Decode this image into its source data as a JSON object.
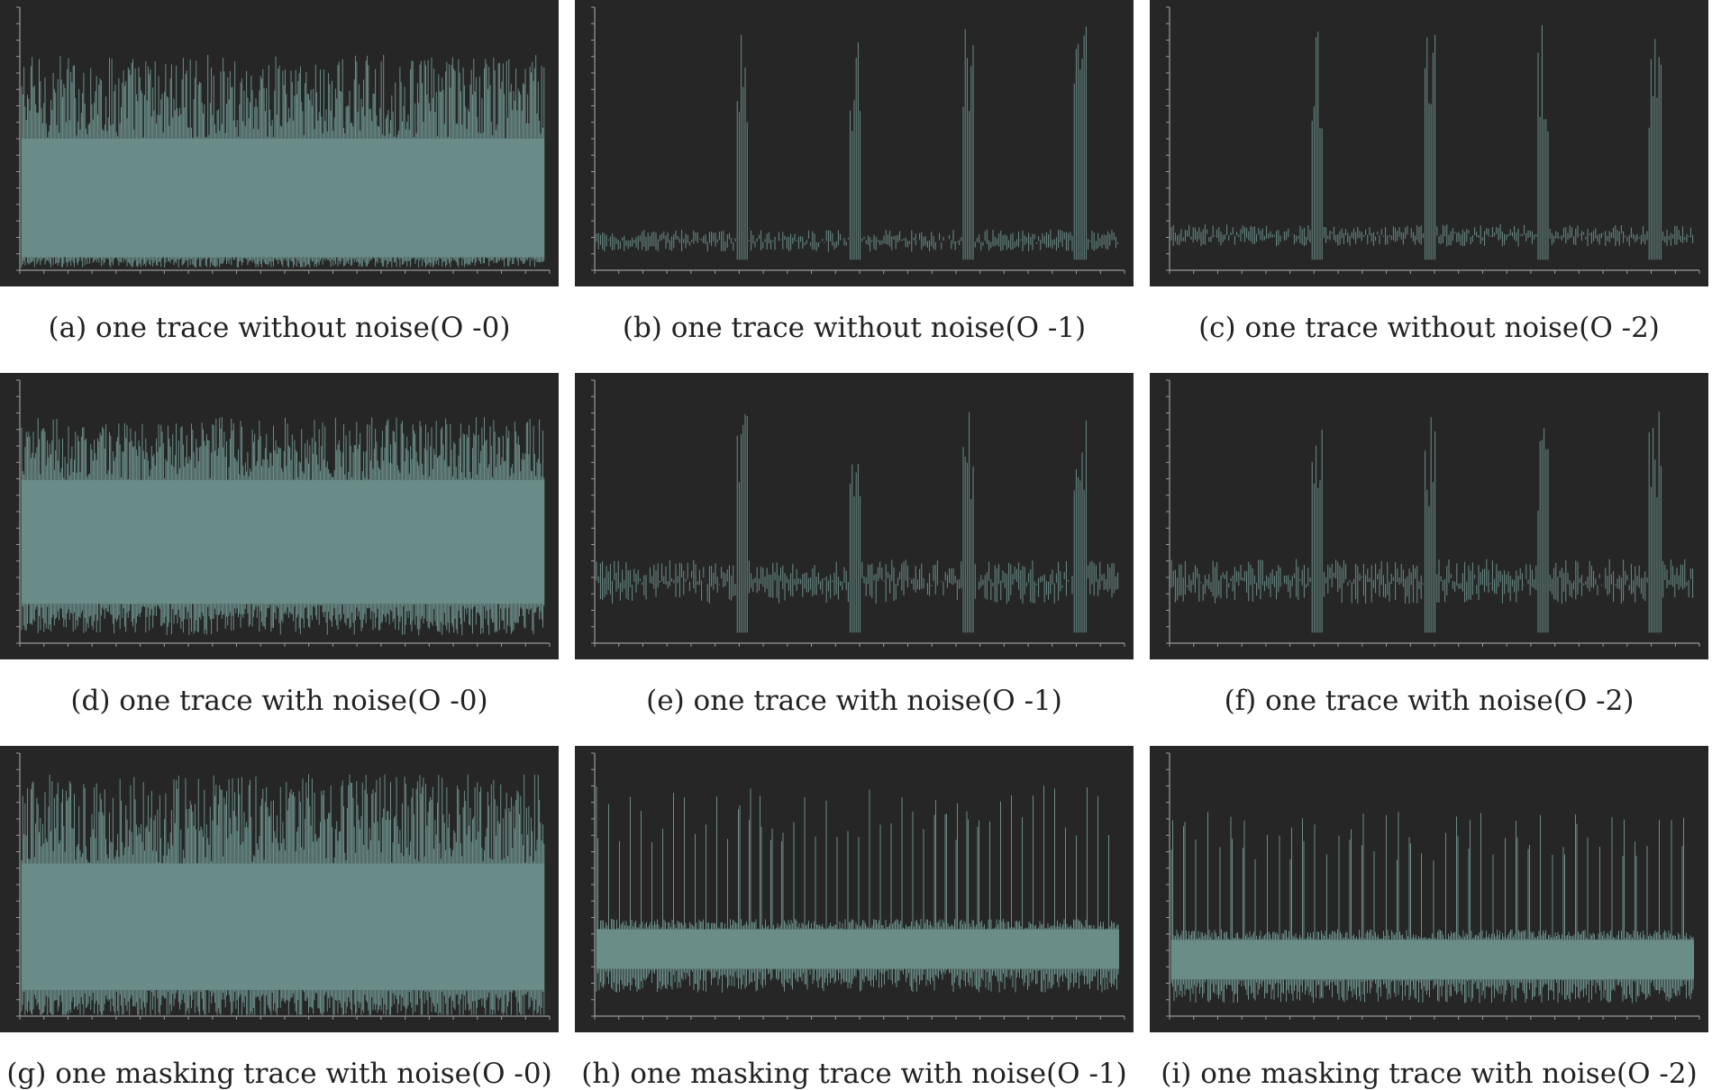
{
  "colors": {
    "background": "#262626",
    "trace": "#6a8d88",
    "axis": "#9a9a9a"
  },
  "panels": [
    {
      "caption": "(a) one trace without noise(O -0)",
      "chart_data": {
        "type": "line",
        "pattern": "dense",
        "noise": false,
        "masking": false,
        "peaks": 0,
        "band_low": 0.05,
        "band_high": 0.5,
        "spike_top": 0.82,
        "grid": false
      }
    },
    {
      "caption": "(b) one trace without noise(O -1)",
      "chart_data": {
        "type": "line",
        "pattern": "spikes",
        "noise": false,
        "masking": false,
        "peaks": 4,
        "baseline": 0.12,
        "peak_height": 0.94,
        "grid": false
      }
    },
    {
      "caption": "(c) one trace without noise(O -2)",
      "chart_data": {
        "type": "line",
        "pattern": "spikes",
        "noise": false,
        "masking": false,
        "peaks": 4,
        "baseline": 0.14,
        "peak_height": 0.96,
        "grid": false
      }
    },
    {
      "caption": "(d) one trace with noise(O -0)",
      "chart_data": {
        "type": "line",
        "pattern": "dense",
        "noise": true,
        "masking": false,
        "peaks": 0,
        "band_low": 0.15,
        "band_high": 0.62,
        "spike_top": 0.86,
        "grid": false
      }
    },
    {
      "caption": "(e) one trace with noise(O -1)",
      "chart_data": {
        "type": "line",
        "pattern": "spikes",
        "noise": true,
        "masking": false,
        "peaks": 4,
        "baseline": 0.25,
        "peak_height": 0.92,
        "grid": false
      }
    },
    {
      "caption": "(f) one trace with noise(O -2)",
      "chart_data": {
        "type": "line",
        "pattern": "spikes",
        "noise": true,
        "masking": false,
        "peaks": 4,
        "baseline": 0.25,
        "peak_height": 0.9,
        "grid": false
      }
    },
    {
      "caption": "(g) one masking trace with noise(O -0)",
      "chart_data": {
        "type": "line",
        "pattern": "masked-dense",
        "noise": true,
        "masking": true,
        "peaks": 0,
        "band_low": 0.1,
        "band_high": 0.58,
        "spike_top": 0.92,
        "grid": false
      }
    },
    {
      "caption": "(h) one masking trace with noise(O -1)",
      "chart_data": {
        "type": "line",
        "pattern": "masked-periodic",
        "noise": true,
        "masking": true,
        "peaks": 48,
        "band_low": 0.18,
        "band_high": 0.33,
        "spike_top": 0.88,
        "grid": false
      }
    },
    {
      "caption": "(i) one masking trace with noise(O -2)",
      "chart_data": {
        "type": "line",
        "pattern": "masked-periodic",
        "noise": true,
        "masking": true,
        "peaks": 44,
        "band_low": 0.14,
        "band_high": 0.29,
        "spike_top": 0.78,
        "grid": false
      }
    }
  ]
}
